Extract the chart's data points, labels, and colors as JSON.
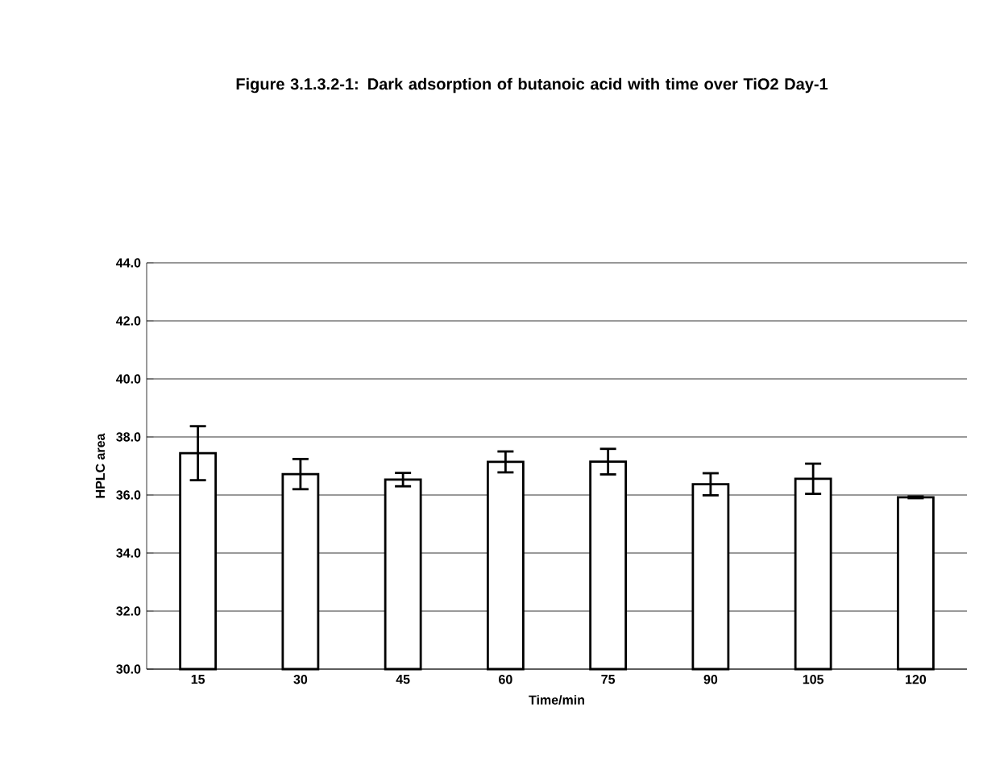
{
  "chart_data": {
    "type": "bar",
    "title": "Figure 3.1.3.2-1: Dark adsorption of butanoic acid with time over TiO2 Day-1",
    "xlabel": "Time/min",
    "ylabel": "HPLC area",
    "categories": [
      "15",
      "30",
      "45",
      "60",
      "75",
      "90",
      "105",
      "120"
    ],
    "values": [
      37.44,
      36.72,
      36.53,
      37.14,
      37.15,
      36.37,
      36.56,
      35.92
    ],
    "errors": [
      0.93,
      0.52,
      0.23,
      0.36,
      0.44,
      0.38,
      0.52,
      0.03
    ],
    "color": "#ffffff",
    "ylim": [
      30,
      44
    ],
    "yticks": [
      {
        "value": 30,
        "label": "30.0"
      },
      {
        "value": 32,
        "label": "32.0"
      },
      {
        "value": 34,
        "label": "34.0"
      },
      {
        "value": 36,
        "label": "36.0"
      },
      {
        "value": 38,
        "label": "38.0"
      },
      {
        "value": 40,
        "label": "40.0"
      },
      {
        "value": 42,
        "label": "42.0"
      },
      {
        "value": 44,
        "label": "44.0"
      }
    ],
    "grid": "y"
  }
}
